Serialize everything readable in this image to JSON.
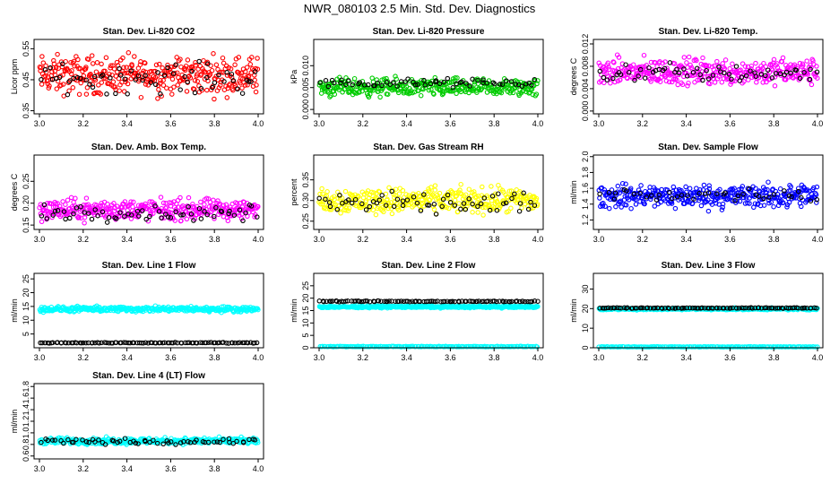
{
  "title": "NWR_080103  2.5 Min. Std. Dev. Diagnostics",
  "colors": {
    "red": "#ff0000",
    "green": "#00cc00",
    "magenta": "#ff00ff",
    "yellow": "#ffff00",
    "blue": "#0000ff",
    "cyan": "#00ffff",
    "black": "#000000"
  },
  "chart_data": [
    {
      "type": "scatter",
      "title": "Stan. Dev. Li-820 CO2",
      "ylabel": "Licor ppm",
      "xlim": [
        3.0,
        4.0
      ],
      "xticks": [
        "3.0",
        "3.2",
        "3.4",
        "3.6",
        "3.8",
        "4.0"
      ],
      "ylim": [
        0.34,
        0.58
      ],
      "yticks": [
        "0.35",
        "0.45",
        "0.55"
      ],
      "color": "#ff0000",
      "series": [
        {
          "name": "points",
          "color": "#ff0000",
          "base": 0.465,
          "spread": 0.09,
          "n": 360
        },
        {
          "name": "highlighted",
          "color": "#000000",
          "base": 0.455,
          "spread": 0.07,
          "n": 60
        }
      ]
    },
    {
      "type": "scatter",
      "title": "Stan. Dev. Li-820 Pressure",
      "ylabel": "kPa",
      "xlim": [
        3.0,
        4.0
      ],
      "xticks": [
        "3.0",
        "3.2",
        "3.4",
        "3.6",
        "3.8",
        "4.0"
      ],
      "ylim": [
        -0.001,
        0.016
      ],
      "yticks": [
        "0.000",
        "0.005",
        "0.010"
      ],
      "color": "#00cc00",
      "series": [
        {
          "name": "points",
          "color": "#00cc00",
          "base": 0.005,
          "spread": 0.003,
          "n": 360
        },
        {
          "name": "highlighted",
          "color": "#000000",
          "base": 0.006,
          "spread": 0.0015,
          "n": 60
        }
      ]
    },
    {
      "type": "scatter",
      "title": "Stan. Dev. Li-820 Temp.",
      "ylabel": "degrees C",
      "xlim": [
        3.0,
        4.0
      ],
      "xticks": [
        "3.0",
        "3.2",
        "3.4",
        "3.6",
        "3.8",
        "4.0"
      ],
      "ylim": [
        -0.0005,
        0.0128
      ],
      "yticks": [
        "0.000",
        "0.004",
        "0.008",
        "0.012"
      ],
      "color": "#ff00ff",
      "series": [
        {
          "name": "points",
          "color": "#ff00ff",
          "base": 0.007,
          "spread": 0.0035,
          "n": 360
        },
        {
          "name": "highlighted",
          "color": "#000000",
          "base": 0.0068,
          "spread": 0.0025,
          "n": 60
        }
      ]
    },
    {
      "type": "scatter",
      "title": "Stan. Dev. Amb. Box Temp.",
      "ylabel": "degrees C",
      "xlim": [
        3.0,
        4.0
      ],
      "xticks": [
        "3.0",
        "3.2",
        "3.4",
        "3.6",
        "3.8",
        "4.0"
      ],
      "ylim": [
        0.14,
        0.31
      ],
      "yticks": [
        "0.15",
        "0.20",
        "0.25"
      ],
      "color": "#ff00ff",
      "series": [
        {
          "name": "points",
          "color": "#ff00ff",
          "base": 0.185,
          "spread": 0.035,
          "n": 360
        },
        {
          "name": "highlighted",
          "color": "#000000",
          "base": 0.178,
          "spread": 0.025,
          "n": 60
        }
      ]
    },
    {
      "type": "scatter",
      "title": "Stan. Dev. Gas Stream RH",
      "ylabel": "percent",
      "xlim": [
        3.0,
        4.0
      ],
      "xticks": [
        "3.0",
        "3.2",
        "3.4",
        "3.6",
        "3.8",
        "4.0"
      ],
      "ylim": [
        0.23,
        0.41
      ],
      "yticks": [
        "0.25",
        "0.30",
        "0.35"
      ],
      "color": "#ffff00",
      "series": [
        {
          "name": "points",
          "color": "#ffff00",
          "base": 0.3,
          "spread": 0.045,
          "n": 360
        },
        {
          "name": "highlighted",
          "color": "#000000",
          "base": 0.295,
          "spread": 0.035,
          "n": 60
        }
      ]
    },
    {
      "type": "scatter",
      "title": "Stan. Dev. Sample Flow",
      "ylabel": "ml/min",
      "xlim": [
        3.0,
        4.0
      ],
      "xticks": [
        "3.0",
        "3.2",
        "3.4",
        "3.6",
        "3.8",
        "4.0"
      ],
      "ylim": [
        1.08,
        2.02
      ],
      "yticks": [
        "1.2",
        "1.4",
        "1.6",
        "1.8",
        "2.0"
      ],
      "color": "#0000ff",
      "series": [
        {
          "name": "points",
          "color": "#0000ff",
          "base": 1.5,
          "spread": 0.22,
          "n": 360
        },
        {
          "name": "highlighted",
          "color": "#000000",
          "base": 1.52,
          "spread": 0.12,
          "n": 40
        }
      ]
    },
    {
      "type": "scatter",
      "title": "Stan. Dev. Line 1 Flow",
      "ylabel": "ml/min",
      "xlim": [
        3.0,
        4.0
      ],
      "xticks": [
        "3.0",
        "3.2",
        "3.4",
        "3.6",
        "3.8",
        "4.0"
      ],
      "ylim": [
        0,
        27
      ],
      "yticks": [
        "5",
        "10",
        "15",
        "20",
        "25"
      ],
      "color": "#00ffff",
      "series": [
        {
          "name": "points",
          "color": "#00ffff",
          "base": 14.0,
          "spread": 1.4,
          "n": 360
        },
        {
          "name": "highlighted",
          "color": "#000000",
          "base": 1.8,
          "spread": 0.2,
          "n": 100
        }
      ]
    },
    {
      "type": "scatter",
      "title": "Stan. Dev. Line 2 Flow",
      "ylabel": "ml/min",
      "xlim": [
        3.0,
        4.0
      ],
      "xticks": [
        "3.0",
        "3.2",
        "3.4",
        "3.6",
        "3.8",
        "4.0"
      ],
      "ylim": [
        0,
        30
      ],
      "yticks": [
        "0",
        "5",
        "10",
        "15",
        "20",
        "25"
      ],
      "color": "#00ffff",
      "series": [
        {
          "name": "points",
          "color": "#00ffff",
          "base": 16.5,
          "spread": 0.6,
          "n": 360
        },
        {
          "name": "points-low",
          "color": "#00ffff",
          "base": 0.5,
          "spread": 0.2,
          "n": 150
        },
        {
          "name": "highlighted",
          "color": "#000000",
          "base": 18.7,
          "spread": 0.3,
          "n": 100
        }
      ]
    },
    {
      "type": "scatter",
      "title": "Stan. Dev. Line 3 Flow",
      "ylabel": "ml/min",
      "xlim": [
        3.0,
        4.0
      ],
      "xticks": [
        "3.0",
        "3.2",
        "3.4",
        "3.6",
        "3.8",
        "4.0"
      ],
      "ylim": [
        0,
        38
      ],
      "yticks": [
        "0",
        "10",
        "20",
        "30"
      ],
      "color": "#00ffff",
      "series": [
        {
          "name": "points",
          "color": "#00ffff",
          "base": 19.8,
          "spread": 0.7,
          "n": 360
        },
        {
          "name": "points-low",
          "color": "#00ffff",
          "base": 0.5,
          "spread": 0.2,
          "n": 150
        },
        {
          "name": "highlighted",
          "color": "#000000",
          "base": 20.3,
          "spread": 0.3,
          "n": 100
        }
      ]
    },
    {
      "type": "scatter",
      "title": "Stan. Dev. Line 4 (LT) Flow",
      "ylabel": "ml/min",
      "xlim": [
        3.0,
        4.0
      ],
      "xticks": [
        "3.0",
        "3.2",
        "3.4",
        "3.6",
        "3.8",
        "4.0"
      ],
      "ylim": [
        0.55,
        1.85
      ],
      "yticks": [
        "0.6",
        "0.8",
        "1.0",
        "1.2",
        "1.4",
        "1.6",
        "1.8"
      ],
      "color": "#00ffff",
      "series": [
        {
          "name": "points",
          "color": "#00ffff",
          "base": 0.86,
          "spread": 0.08,
          "n": 360
        },
        {
          "name": "highlighted",
          "color": "#000000",
          "base": 0.85,
          "spread": 0.07,
          "n": 60
        }
      ]
    }
  ]
}
